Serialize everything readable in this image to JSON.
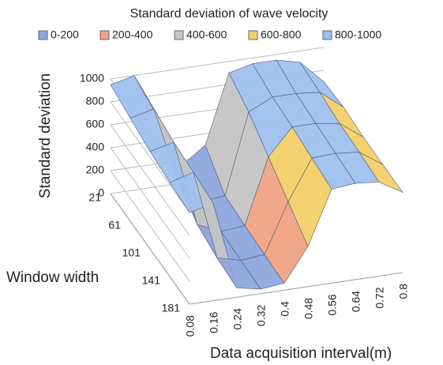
{
  "chart_data": {
    "type": "surface",
    "title": "Standard deviation of wave velocity",
    "x_label": "Data acquisition interval(m)",
    "y_label": "Window width",
    "z_label": "Standard deviation",
    "x": [
      "0.08",
      "0.16",
      "0.24",
      "0.32",
      "0.4",
      "0.48",
      "0.56",
      "0.64",
      "0.72",
      "0.8"
    ],
    "y": [
      "21",
      "61",
      "101",
      "141",
      "181"
    ],
    "zlim": [
      0,
      1000
    ],
    "zticks": [
      0,
      200,
      400,
      600,
      800,
      1000
    ],
    "series": [
      {
        "name": "0-200",
        "color": "#8ea6e0"
      },
      {
        "name": "200-400",
        "color": "#f0a284"
      },
      {
        "name": "400-600",
        "color": "#c4c4c4"
      },
      {
        "name": "600-800",
        "color": "#f4d068"
      },
      {
        "name": "800-1000",
        "color": "#9fc0ee"
      }
    ],
    "values": [
      [
        950,
        1000,
        600,
        150,
        300,
        900,
        950,
        950,
        900,
        700
      ],
      [
        900,
        950,
        300,
        80,
        100,
        800,
        900,
        900,
        880,
        720
      ],
      [
        850,
        900,
        150,
        60,
        80,
        650,
        880,
        880,
        850,
        700
      ],
      [
        820,
        880,
        100,
        50,
        70,
        500,
        850,
        860,
        840,
        700
      ],
      [
        800,
        850,
        80,
        40,
        60,
        350,
        820,
        840,
        820,
        700
      ]
    ]
  }
}
